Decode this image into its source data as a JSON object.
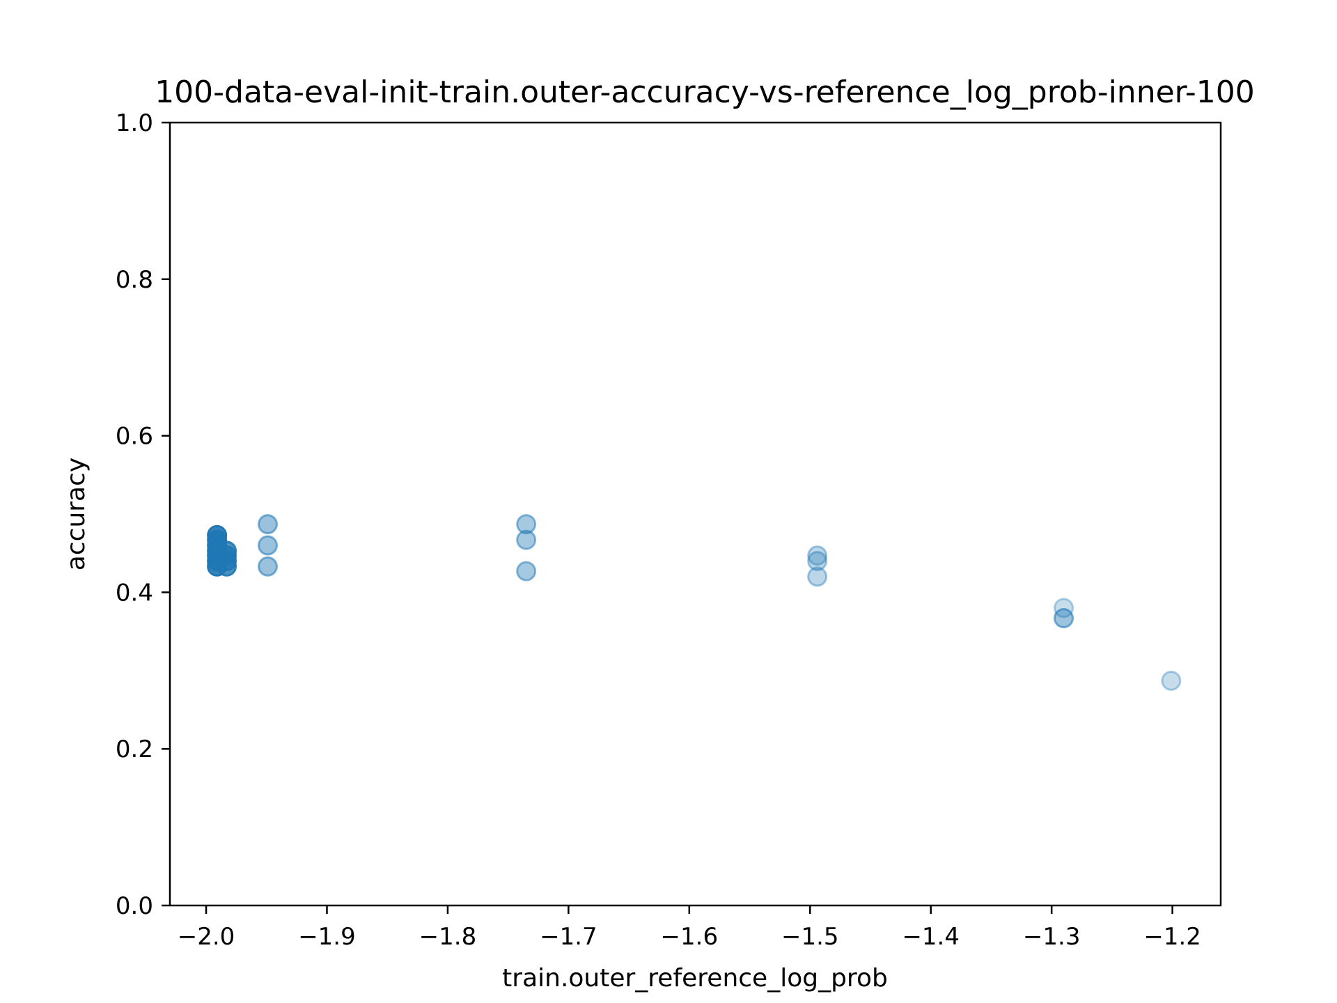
{
  "chart_data": {
    "type": "scatter",
    "title": "100-data-eval-init-train.outer-accuracy-vs-reference_log_prob-inner-100",
    "xlabel": "train.outer_reference_log_prob",
    "ylabel": "accuracy",
    "xlim": [
      -2.03,
      -1.16
    ],
    "ylim": [
      0.0,
      1.0
    ],
    "xticks": [
      -2.0,
      -1.9,
      -1.8,
      -1.7,
      -1.6,
      -1.5,
      -1.4,
      -1.3,
      -1.2
    ],
    "xtick_labels": [
      "−2.0",
      "−1.9",
      "−1.8",
      "−1.7",
      "−1.6",
      "−1.5",
      "−1.4",
      "−1.3",
      "−1.2"
    ],
    "yticks": [
      0.0,
      0.2,
      0.4,
      0.6,
      0.8,
      1.0
    ],
    "ytick_labels": [
      "0.0",
      "0.2",
      "0.4",
      "0.6",
      "0.8",
      "1.0"
    ],
    "grid": false,
    "marker_color": "#1f77b4",
    "points": [
      {
        "x": -1.991,
        "y": 0.473,
        "opacity": 0.9
      },
      {
        "x": -1.991,
        "y": 0.467,
        "opacity": 0.9
      },
      {
        "x": -1.991,
        "y": 0.46,
        "opacity": 0.9
      },
      {
        "x": -1.991,
        "y": 0.453,
        "opacity": 0.9
      },
      {
        "x": -1.991,
        "y": 0.447,
        "opacity": 0.9
      },
      {
        "x": -1.991,
        "y": 0.44,
        "opacity": 0.9
      },
      {
        "x": -1.991,
        "y": 0.433,
        "opacity": 0.9
      },
      {
        "x": -1.983,
        "y": 0.453,
        "opacity": 0.8
      },
      {
        "x": -1.983,
        "y": 0.447,
        "opacity": 0.8
      },
      {
        "x": -1.983,
        "y": 0.44,
        "opacity": 0.8
      },
      {
        "x": -1.983,
        "y": 0.433,
        "opacity": 0.8
      },
      {
        "x": -1.949,
        "y": 0.487,
        "opacity": 0.45
      },
      {
        "x": -1.949,
        "y": 0.46,
        "opacity": 0.45
      },
      {
        "x": -1.949,
        "y": 0.433,
        "opacity": 0.45
      },
      {
        "x": -1.735,
        "y": 0.487,
        "opacity": 0.4
      },
      {
        "x": -1.735,
        "y": 0.467,
        "opacity": 0.4
      },
      {
        "x": -1.735,
        "y": 0.427,
        "opacity": 0.4
      },
      {
        "x": -1.494,
        "y": 0.447,
        "opacity": 0.3
      },
      {
        "x": -1.494,
        "y": 0.44,
        "opacity": 0.3
      },
      {
        "x": -1.494,
        "y": 0.42,
        "opacity": 0.3
      },
      {
        "x": -1.29,
        "y": 0.38,
        "opacity": 0.25
      },
      {
        "x": -1.29,
        "y": 0.367,
        "opacity": 0.25
      },
      {
        "x": -1.29,
        "y": 0.367,
        "opacity": 0.25
      },
      {
        "x": -1.201,
        "y": 0.287,
        "opacity": 0.25
      }
    ]
  }
}
